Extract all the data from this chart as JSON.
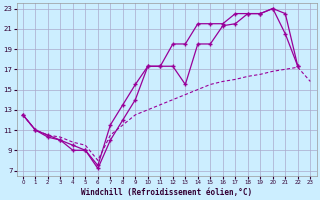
{
  "background_color": "#cceeff",
  "grid_color": "#aaaacc",
  "line_color": "#990099",
  "xlim": [
    -0.5,
    23.5
  ],
  "ylim": [
    6.5,
    23.5
  ],
  "yticks": [
    7,
    9,
    11,
    13,
    15,
    17,
    19,
    21,
    23
  ],
  "xticks": [
    0,
    1,
    2,
    3,
    4,
    5,
    6,
    7,
    8,
    9,
    10,
    11,
    12,
    13,
    14,
    15,
    16,
    17,
    18,
    19,
    20,
    21,
    22,
    23
  ],
  "xlabel": "Windchill (Refroidissement éolien,°C)",
  "hours": [
    0,
    1,
    2,
    3,
    4,
    5,
    6,
    7,
    8,
    9,
    10,
    11,
    12,
    13,
    14,
    15,
    16,
    17,
    18,
    19,
    20,
    21,
    22,
    23
  ],
  "line1_x": [
    0,
    1,
    2,
    3,
    4,
    5,
    6,
    7,
    8,
    9,
    10,
    11,
    12,
    13,
    14,
    15,
    16,
    17,
    18,
    19,
    20,
    21,
    22
  ],
  "line1_y": [
    12.5,
    11.0,
    10.5,
    10.0,
    9.0,
    9.0,
    7.2,
    10.0,
    12.0,
    14.0,
    17.3,
    17.3,
    17.3,
    15.5,
    19.5,
    19.5,
    21.3,
    21.5,
    22.5,
    22.5,
    23.0,
    20.5,
    17.3
  ],
  "line2_x": [
    0,
    1,
    2,
    3,
    4,
    5,
    6,
    7,
    8,
    9,
    10,
    11,
    12,
    13,
    14,
    15,
    16,
    17,
    18,
    19,
    20,
    21,
    22,
    23
  ],
  "line2_y": [
    12.5,
    11.0,
    10.3,
    10.0,
    9.5,
    9.0,
    7.5,
    11.5,
    13.5,
    15.5,
    17.3,
    17.3,
    19.5,
    19.5,
    21.5,
    21.5,
    21.5,
    22.5,
    22.5,
    22.5,
    23.0,
    22.5,
    17.3,
    null
  ],
  "line3_x": [
    0,
    1,
    2,
    3,
    4,
    5,
    6,
    7,
    8,
    9,
    10,
    11,
    12,
    13,
    14,
    15,
    16,
    17,
    18,
    19,
    20,
    21,
    22,
    23
  ],
  "line3_y": [
    12.5,
    11.0,
    10.5,
    10.3,
    9.8,
    9.5,
    8.0,
    10.5,
    11.5,
    12.5,
    13.0,
    13.5,
    14.0,
    14.5,
    15.0,
    15.5,
    15.8,
    16.0,
    16.3,
    16.5,
    16.8,
    17.0,
    17.2,
    15.8
  ]
}
